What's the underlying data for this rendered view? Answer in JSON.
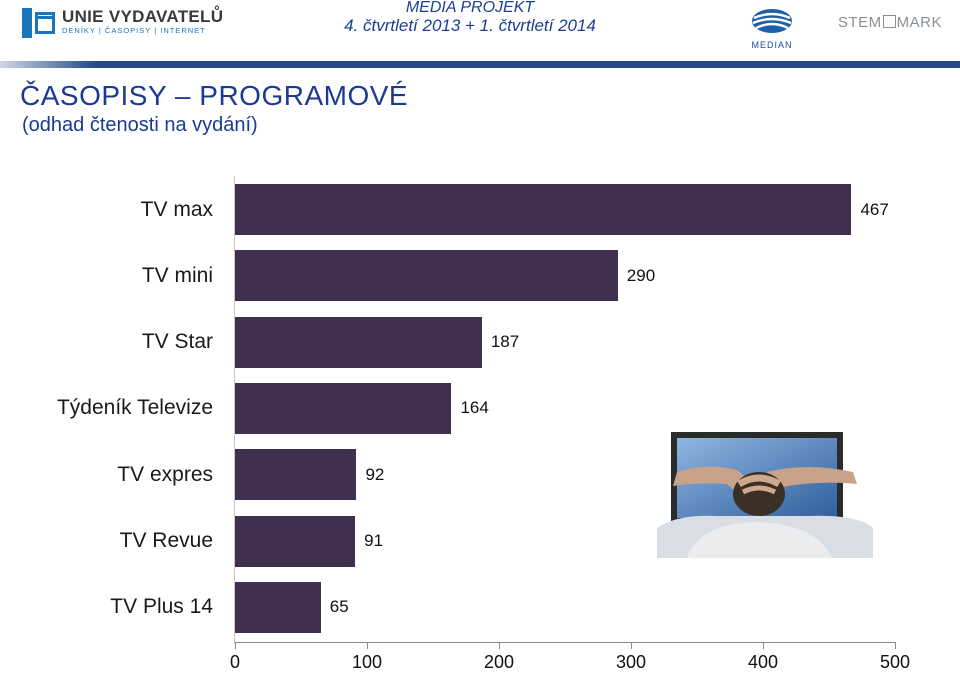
{
  "header": {
    "publisher_line1": "UNIE VYDAVATELŮ",
    "publisher_line2": "DENÍKY | ČASOPISY | INTERNET",
    "project_title": "MEDIA PROJEKT",
    "project_period": "4. čtvrtletí 2013 + 1. čtvrtletí 2014",
    "median_label": "MEDIAN",
    "stem_left": "STEM",
    "stem_right": "MARK"
  },
  "title": {
    "main": "ČASOPISY – PROGRAMOVÉ",
    "sub": "(odhad čtenosti na vydání)"
  },
  "colors": {
    "bar": "#402f4f",
    "title": "#1a3a93",
    "project": "#1a3f93"
  },
  "chart_data": {
    "type": "bar",
    "orientation": "horizontal",
    "title": "ČASOPISY – PROGRAMOVÉ (odhad čtenosti na vydání)",
    "xlabel": "",
    "ylabel": "",
    "categories": [
      "TV max",
      "TV mini",
      "TV Star",
      "Týdeník Televize",
      "TV expres",
      "TV Revue",
      "TV Plus 14"
    ],
    "values": [
      467,
      290,
      187,
      164,
      92,
      91,
      65
    ],
    "value_labels": [
      "467",
      "290",
      "187",
      "164",
      "92",
      "91",
      "65"
    ],
    "xlim": [
      0,
      500
    ],
    "ticks": [
      0,
      100,
      200,
      300,
      400,
      500
    ],
    "tick_labels": [
      "0",
      "100",
      "200",
      "300",
      "400",
      "500"
    ],
    "grid": false
  }
}
